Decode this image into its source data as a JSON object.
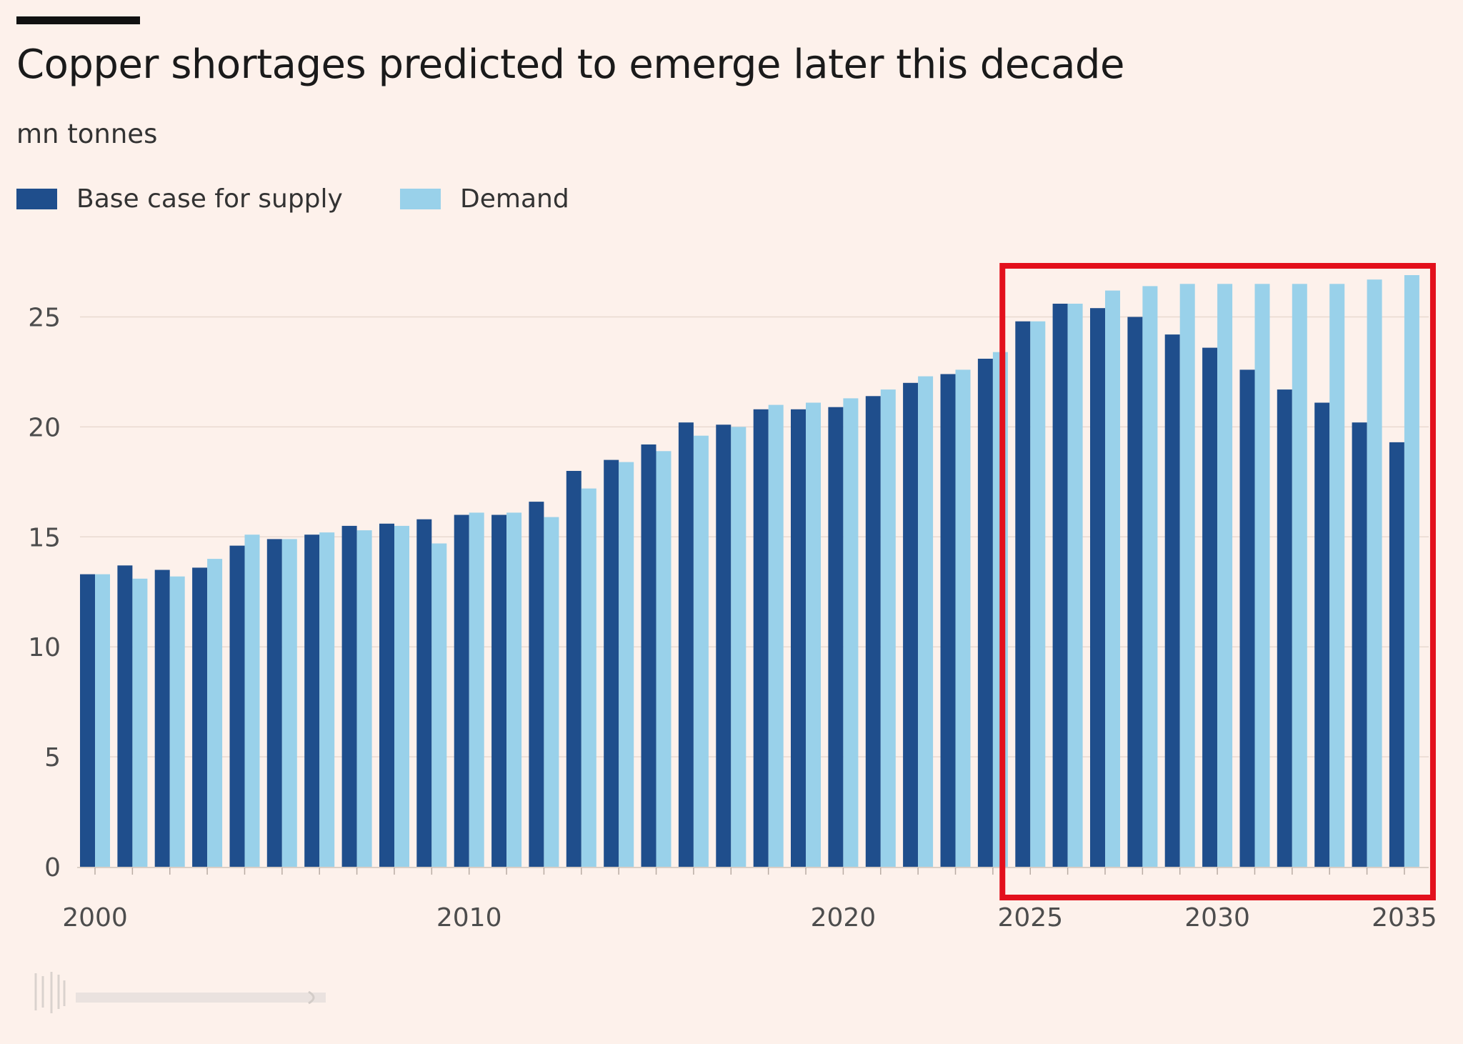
{
  "title": "Copper shortages predicted to emerge later this decade",
  "subtitle": "mn tonnes",
  "legend": [
    {
      "label": "Base case for supply",
      "color": "#1f4e8c"
    },
    {
      "label": "Demand",
      "color": "#99d1ea"
    }
  ],
  "colors": {
    "background": "#fdf1eb",
    "gridline": "#e8d9d0",
    "axis_text": "#4d4d4d",
    "highlight_box": "#e3101c"
  },
  "chart_data": {
    "type": "bar",
    "title": "Copper shortages predicted to emerge later this decade",
    "ylabel": "mn tonnes",
    "xlabel": "",
    "ylim": [
      0,
      27.5
    ],
    "yticks": [
      0,
      5,
      10,
      15,
      20,
      25
    ],
    "categories": [
      2000,
      2001,
      2002,
      2003,
      2004,
      2005,
      2006,
      2007,
      2008,
      2009,
      2010,
      2011,
      2012,
      2013,
      2014,
      2015,
      2016,
      2017,
      2018,
      2019,
      2020,
      2021,
      2022,
      2023,
      2024,
      2025,
      2026,
      2027,
      2028,
      2029,
      2030,
      2031,
      2032,
      2033,
      2034,
      2035
    ],
    "xtick_labels": [
      "2000",
      "2010",
      "2020",
      "2025",
      "2030",
      "2035"
    ],
    "series": [
      {
        "name": "Base case for supply",
        "values": [
          13.3,
          13.7,
          13.5,
          13.6,
          14.6,
          14.9,
          15.1,
          15.5,
          15.6,
          15.8,
          16.0,
          16.0,
          16.6,
          18.0,
          18.5,
          19.2,
          20.2,
          20.1,
          20.8,
          20.8,
          20.9,
          21.4,
          22.0,
          22.4,
          23.1,
          24.8,
          25.6,
          25.4,
          25.0,
          24.2,
          23.6,
          22.6,
          21.7,
          21.1,
          20.2,
          19.3
        ]
      },
      {
        "name": "Demand",
        "values": [
          13.3,
          13.1,
          13.2,
          14.0,
          15.1,
          14.9,
          15.2,
          15.3,
          15.5,
          14.7,
          16.1,
          16.1,
          15.9,
          17.2,
          18.4,
          18.9,
          19.6,
          20.0,
          21.0,
          21.1,
          21.3,
          21.7,
          22.3,
          22.6,
          23.4,
          24.8,
          25.6,
          26.2,
          26.4,
          26.5,
          26.5,
          26.5,
          26.5,
          26.5,
          26.7,
          26.9
        ]
      }
    ],
    "annotations": [
      {
        "type": "highlight-box",
        "from": 2025,
        "to": 2035,
        "color": "#e3101c"
      }
    ]
  }
}
